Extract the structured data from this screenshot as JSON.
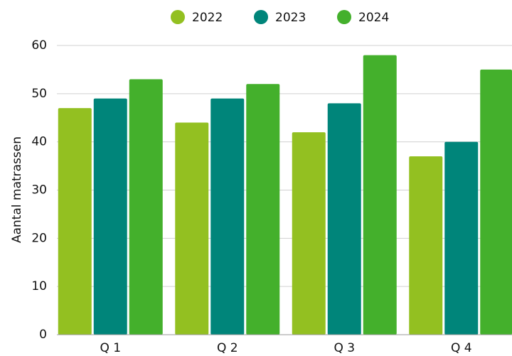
{
  "chart_data": {
    "type": "bar",
    "categories": [
      "Q 1",
      "Q 2",
      "Q 3",
      "Q 4"
    ],
    "series": [
      {
        "name": "2022",
        "color": "#93c021",
        "values": [
          47,
          44,
          42,
          37
        ]
      },
      {
        "name": "2023",
        "color": "#00857a",
        "values": [
          49,
          49,
          48,
          40
        ]
      },
      {
        "name": "2024",
        "color": "#44b02c",
        "values": [
          53,
          52,
          58,
          55
        ]
      }
    ],
    "y_label": "Aantal matrassen",
    "ylim": [
      0,
      60
    ],
    "yticks": [
      0,
      10,
      20,
      30,
      40,
      50,
      60
    ],
    "grid": true,
    "legend": "top"
  }
}
